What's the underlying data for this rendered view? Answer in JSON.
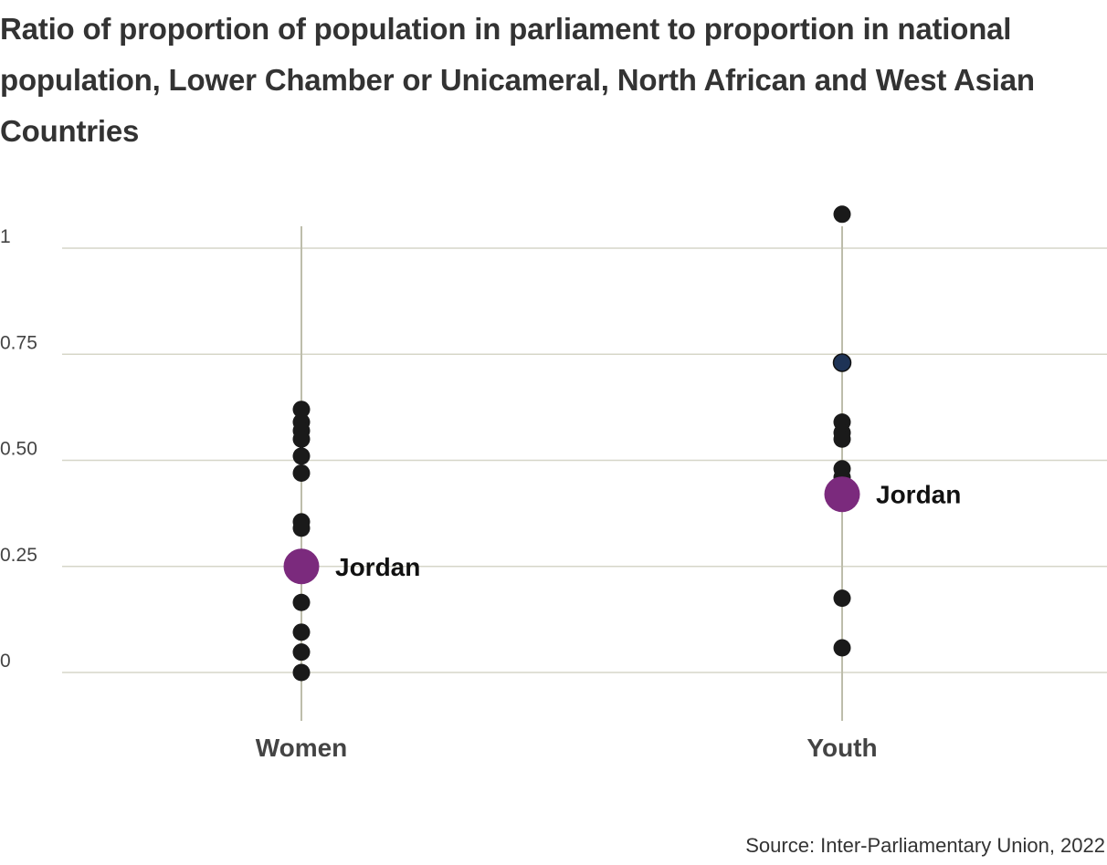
{
  "chart_data": {
    "type": "scatter",
    "title": "Ratio of proportion of population in parliament to proportion in national population, Lower Chamber or Unicameral, North African and West Asian Countries",
    "source": "Source: Inter-Parliamentary Union, 2022",
    "categories": [
      "Women",
      "Youth"
    ],
    "y_ticks": [
      {
        "value": 0,
        "label": "0"
      },
      {
        "value": 0.25,
        "label": "0.25"
      },
      {
        "value": 0.5,
        "label": "0.50"
      },
      {
        "value": 0.75,
        "label": "0.75"
      },
      {
        "value": 1,
        "label": "1"
      }
    ],
    "ylim": [
      -0.11,
      1.1
    ],
    "grid": true,
    "highlight_label": "Jordan",
    "colors": {
      "point": "#1a1a1a",
      "highlight": "#7b2a7d",
      "outlier_dark_blue": "#1e3356",
      "grid": "#d6d6c8",
      "category_line": "#bdbdab",
      "title": "#333333",
      "tick_label": "#444444",
      "category_label": "#444444"
    },
    "series": [
      {
        "category": "Women",
        "values": [
          0.62,
          0.59,
          0.57,
          0.55,
          0.51,
          0.47,
          0.355,
          0.34,
          0.165,
          0.095,
          0.048,
          0.0
        ],
        "highlight": {
          "label": "Jordan",
          "value": 0.25
        }
      },
      {
        "category": "Youth",
        "values": [
          1.08,
          0.73,
          0.59,
          0.565,
          0.55,
          0.48,
          0.46,
          0.445,
          0.175,
          0.058
        ],
        "highlight": {
          "label": "Jordan",
          "value": 0.42
        }
      }
    ]
  }
}
